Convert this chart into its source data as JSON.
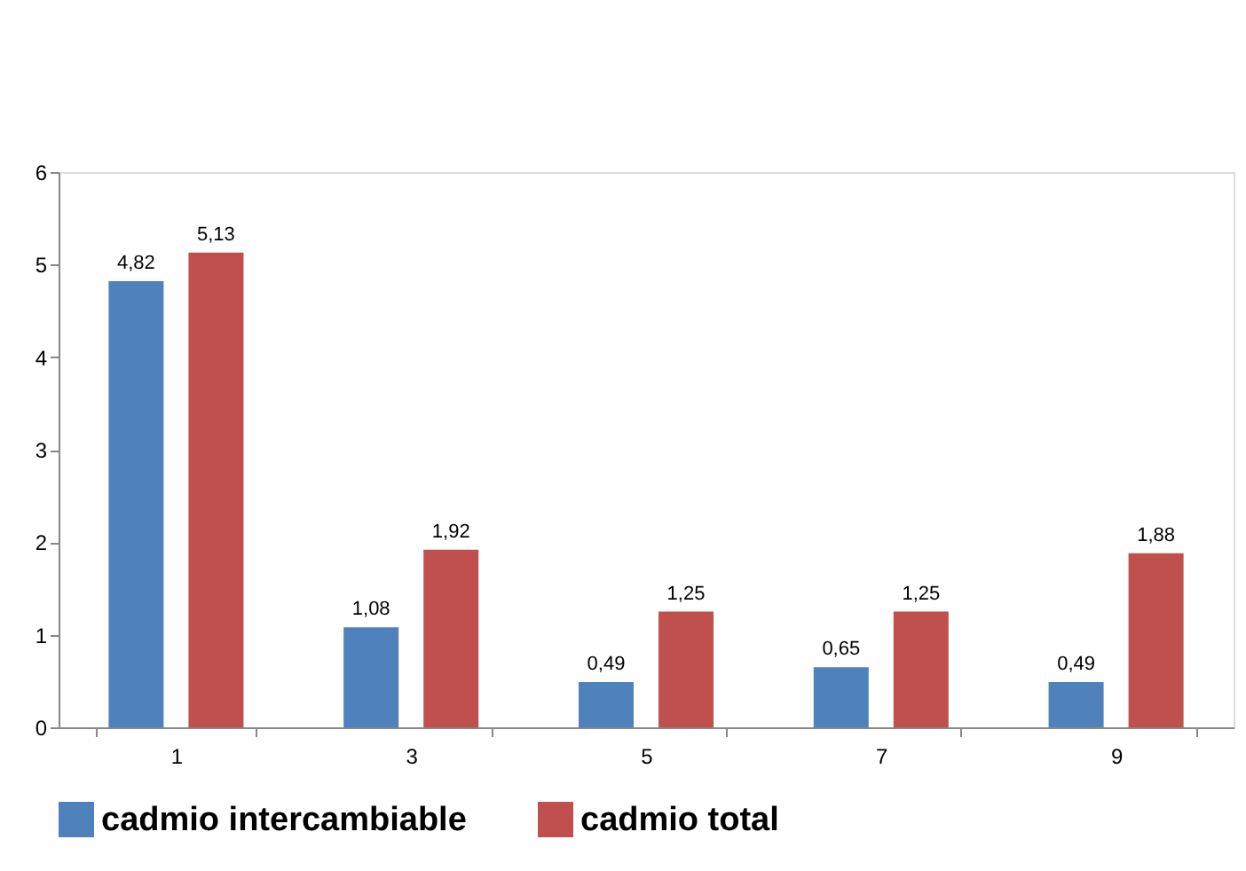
{
  "chart_data": {
    "type": "bar",
    "categories": [
      "1",
      "3",
      "5",
      "7",
      "9"
    ],
    "series": [
      {
        "name": "cadmio intercambiable",
        "color": "#4f81bd",
        "values": [
          4.82,
          1.08,
          0.49,
          0.65,
          0.49
        ],
        "value_labels": [
          "4,82",
          "1,08",
          "0,49",
          "0,65",
          "0,49"
        ]
      },
      {
        "name": "cadmio total",
        "color": "#c0504d",
        "values": [
          5.13,
          1.92,
          1.25,
          1.25,
          1.88
        ],
        "value_labels": [
          "5,13",
          "1,92",
          "1,25",
          "1,25",
          "1,88"
        ]
      }
    ],
    "ylim": [
      0,
      6
    ],
    "yticks": [
      0,
      1,
      2,
      3,
      4,
      5,
      6
    ],
    "grid": false,
    "legend": "bottom"
  }
}
